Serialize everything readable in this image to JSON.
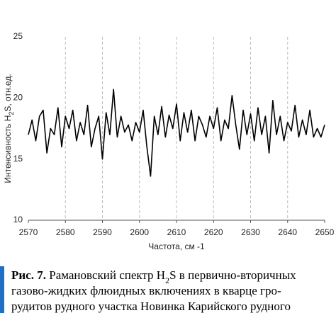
{
  "chart_data": {
    "type": "line",
    "ylabel_parts": [
      "Интенсивность H",
      "2",
      "S, отн.ед."
    ],
    "xlabel": "Частота, см -1",
    "x": [
      2570,
      2571,
      2572,
      2573,
      2574,
      2575,
      2576,
      2577,
      2578,
      2579,
      2580,
      2581,
      2582,
      2583,
      2584,
      2585,
      2586,
      2587,
      2588,
      2589,
      2590,
      2591,
      2592,
      2593,
      2594,
      2595,
      2596,
      2597,
      2598,
      2599,
      2600,
      2601,
      2602,
      2603,
      2604,
      2605,
      2606,
      2607,
      2608,
      2609,
      2610,
      2611,
      2612,
      2613,
      2614,
      2615,
      2616,
      2617,
      2618,
      2619,
      2620,
      2621,
      2622,
      2623,
      2624,
      2625,
      2626,
      2627,
      2628,
      2629,
      2630,
      2631,
      2632,
      2633,
      2634,
      2635,
      2636,
      2637,
      2638,
      2639,
      2640,
      2641,
      2642,
      2643,
      2644,
      2645,
      2646,
      2647,
      2648,
      2649,
      2650
    ],
    "series": [
      {
        "color": "#000000",
        "values": [
          17.0,
          18.2,
          16.5,
          18.5,
          19.0,
          15.5,
          17.5,
          17.0,
          19.2,
          16.0,
          18.5,
          17.5,
          19.0,
          16.5,
          18.0,
          17.0,
          19.4,
          16.0,
          17.5,
          18.5,
          15.0,
          18.8,
          17.0,
          20.7,
          16.8,
          18.5,
          17.2,
          17.8,
          16.5,
          18.0,
          17.2,
          19.0,
          16.0,
          13.6,
          18.5,
          17.0,
          19.3,
          16.8,
          18.6,
          17.5,
          19.5,
          16.5,
          18.8,
          17.2,
          19.0,
          16.5,
          18.5,
          17.8,
          16.8,
          18.5,
          17.5,
          19.2,
          16.5,
          18.2,
          17.5,
          20.2,
          17.8,
          15.8,
          19.0,
          17.0,
          18.7,
          16.5,
          19.2,
          17.0,
          18.5,
          15.5,
          19.8,
          17.0,
          18.5,
          16.5,
          18.0,
          17.3,
          19.4,
          16.8,
          18.2,
          17.0,
          19.0,
          16.8,
          17.5,
          16.8,
          17.8
        ]
      }
    ],
    "xlim": [
      2570,
      2650
    ],
    "xticks": [
      2570,
      2580,
      2590,
      2600,
      2610,
      2620,
      2630,
      2640,
      2650
    ],
    "ylim": [
      10,
      25
    ],
    "yticks": [
      10,
      15,
      20,
      25
    ],
    "grid": "x"
  },
  "caption": {
    "lines": [
      [
        "Рис. 7.",
        " Рамановский спектр H",
        "2",
        "S в первично-вторичных"
      ],
      [
        "газово-жидких флюидных включениях в кварце гро-"
      ],
      [
        "рудитов рудного участка Новинка Карийского рудного"
      ]
    ]
  }
}
